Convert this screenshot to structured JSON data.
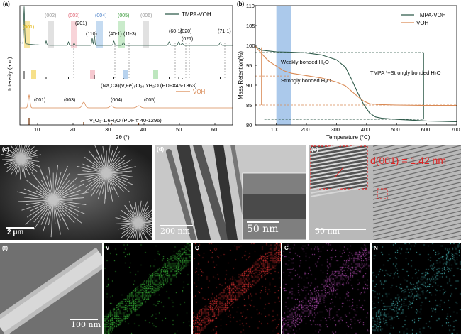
{
  "panel_a": {
    "label": "(a)",
    "legend_top": "TMPA-VOH",
    "legend_bottom": "VOH",
    "pdf_top": "(Na,Ca)(V,Fe)₈O₂₀·xH₂O (PDF#45-1363)",
    "pdf_bottom": "V₂O₅·1.6H₂O (PDF # 40-1296)",
    "xlabel": "2θ (°)",
    "ylabel": "Intensity (a.u.)",
    "peak_labels_top": [
      "(001)",
      "(002)",
      "(003)",
      "(201)",
      "(110)",
      "(004)",
      "(40-1)",
      "(005)",
      "(11-3)",
      "(006)",
      "(60-1)",
      "(020)",
      "(021)",
      "(71-1)"
    ],
    "peak_labels_bottom": [
      "(001)",
      "(003)",
      "(004)",
      "(005)"
    ],
    "xticks": [
      "10",
      "20",
      "30",
      "40",
      "50",
      "60"
    ],
    "colors": {
      "top": "#2f5a4a",
      "bottom": "#d98a55",
      "yellow": "#f2d24a",
      "gray": "#c8c8c8",
      "pink": "#f2b8c2",
      "blue": "#9cc0e8",
      "green": "#a8dcaa"
    }
  },
  "chart_data": {
    "type": "line",
    "title": "",
    "xlabel": "Temperature (°C)",
    "ylabel": "Mass Retention(%)",
    "xlim": [
      30,
      700
    ],
    "ylim": [
      80,
      110
    ],
    "xticks": [
      100,
      200,
      300,
      400,
      500,
      600,
      700
    ],
    "yticks": [
      80,
      85,
      90,
      95,
      100,
      105,
      110
    ],
    "series": [
      {
        "name": "TMPA-VOH",
        "color": "#2f5a4a",
        "x": [
          30,
          50,
          100,
          150,
          200,
          250,
          300,
          330,
          350,
          370,
          390,
          410,
          430,
          450,
          500,
          550,
          600,
          650,
          700
        ],
        "y": [
          99.8,
          98.8,
          98.4,
          98.3,
          98.1,
          97.6,
          96.4,
          94.5,
          91.5,
          88.2,
          85.2,
          83.0,
          82.0,
          81.7,
          81.4,
          81.2,
          81.0,
          80.9,
          80.8
        ]
      },
      {
        "name": "VOH",
        "color": "#d98a55",
        "x": [
          30,
          50,
          75,
          100,
          125,
          150,
          200,
          250,
          300,
          330,
          350,
          370,
          390,
          410,
          450,
          500,
          600,
          700
        ],
        "y": [
          99.8,
          98.0,
          96.0,
          94.8,
          93.6,
          93.0,
          92.4,
          91.8,
          90.8,
          89.8,
          88.5,
          87.2,
          86.0,
          85.3,
          85.1,
          85.0,
          84.9,
          84.9
        ]
      }
    ]
  },
  "panel_b": {
    "label": "(b)",
    "annot_weak": "Weakly bonded H₂O",
    "annot_strong": "Strongly bonded H₂O",
    "annot_tmpa": "TMPA⁺+Strongly bonded H₂O",
    "highlight_colors": {
      "band": "#9cc0e8"
    }
  },
  "panel_c": {
    "label": "(c)",
    "scale": "2 μm"
  },
  "panel_d": {
    "label": "(d)",
    "scale_main": "200 nm",
    "scale_inset": "50 nm"
  },
  "panel_e": {
    "label": "(e)",
    "scale": "50 nm",
    "dspacing": "d(001) = 1.42 nm"
  },
  "panel_f": {
    "label": "(f)",
    "scale": "100 nm"
  },
  "eds": [
    {
      "element": "V",
      "color": "#3bbf3b"
    },
    {
      "element": "O",
      "color": "#e03030"
    },
    {
      "element": "C",
      "color": "#c050c0"
    },
    {
      "element": "N",
      "color": "#4fc8c8"
    }
  ]
}
